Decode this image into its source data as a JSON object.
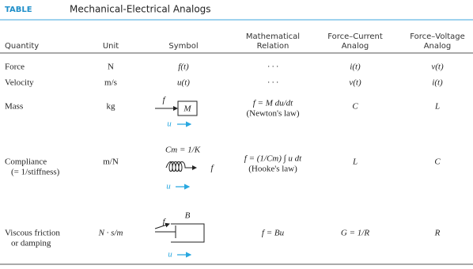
{
  "header": {
    "label": "TABLE",
    "title": "Mechanical-Electrical Analogs"
  },
  "table": {
    "columns": [
      [
        "Quantity"
      ],
      [
        "Unit"
      ],
      [
        "Symbol"
      ],
      [
        "Mathematical",
        "Relation"
      ],
      [
        "Force–Current",
        "Analog"
      ],
      [
        "Force–Voltage",
        "Analog"
      ]
    ],
    "rows": [
      {
        "quantity": [
          "Force"
        ],
        "unit": "N",
        "symbol": {
          "text": "f(t)"
        },
        "relation": [
          "· · ·"
        ],
        "force_current": "i(t)",
        "force_voltage": "v(t)"
      },
      {
        "quantity": [
          "Velocity"
        ],
        "unit": "m/s",
        "symbol": {
          "text": "u(t)"
        },
        "relation": [
          "· · ·"
        ],
        "force_current": "v(t)",
        "force_voltage": "i(t)"
      },
      {
        "quantity": [
          "Mass"
        ],
        "unit": "kg",
        "symbol": {
          "f": "f",
          "element": "M",
          "u": "u"
        },
        "relation": [
          "f = M du/dt",
          "(Newton's law)"
        ],
        "force_current": "C",
        "force_voltage": "L"
      },
      {
        "quantity": [
          "Compliance",
          "(= 1/stiffness)"
        ],
        "unit": "m/N",
        "symbol": {
          "element": "Cm = 1/K",
          "f": "f",
          "u": "u"
        },
        "relation": [
          "f = (1/Cm) ∫ u dt",
          "(Hooke's law)"
        ],
        "force_current": "L",
        "force_voltage": "C"
      },
      {
        "quantity": [
          "Viscous friction",
          "or damping"
        ],
        "unit": "N · s/m",
        "symbol": {
          "element": "B",
          "f": "f",
          "u": "u"
        },
        "relation": [
          "f = Bu"
        ],
        "force_current": "G = 1/R",
        "force_voltage": "R"
      }
    ]
  }
}
